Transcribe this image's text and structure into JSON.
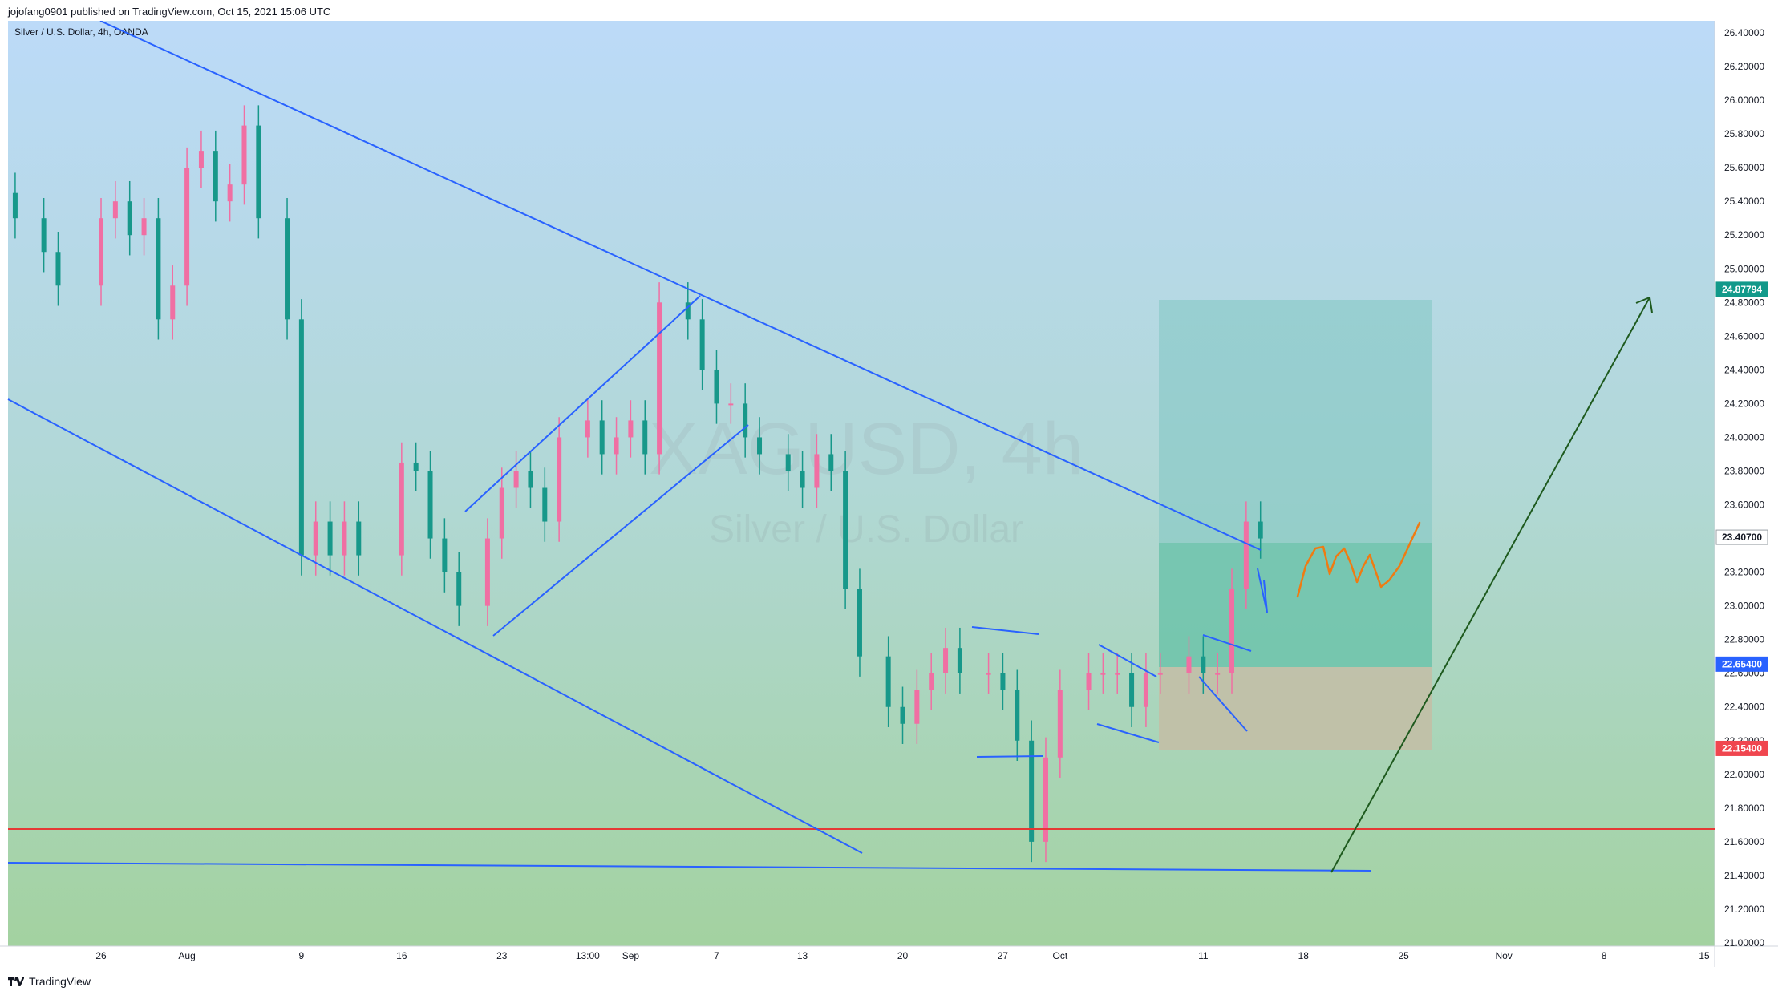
{
  "header": {
    "publish_line": "jojofang0901 published on TradingView.com, Oct 15, 2021 15:06 UTC"
  },
  "symbol": {
    "legend": "Silver / U.S. Dollar, 4h, OANDA",
    "watermark_ticker": "XAGUSD, 4h",
    "watermark_name": "Silver / U.S. Dollar"
  },
  "footer": {
    "brand": "TradingView"
  },
  "colors": {
    "background_top": "#bcdaf8",
    "background_bottom": "#a3d2a0",
    "up_candle": "#f06fa3",
    "down_candle": "#17988a",
    "trendline": "#2962ff",
    "support_line": "#e53935",
    "target_box": "#7fc7c2",
    "profit_box": "#60bfa5",
    "stop_box": "#c6bba4",
    "projection": "#ef7b12",
    "arrow": "#1e5a1e",
    "tag_target": "#12998a",
    "tag_entry": "#2962ff",
    "tag_stop": "#f0464f"
  },
  "chart_data": {
    "type": "candlestick",
    "title": "Silver / U.S. Dollar, 4h, OANDA",
    "ylim": [
      21.0,
      26.4
    ],
    "y_ticks": [
      "26.40000",
      "26.20000",
      "26.00000",
      "25.80000",
      "25.60000",
      "25.40000",
      "25.20000",
      "25.00000",
      "24.80000",
      "24.60000",
      "24.40000",
      "24.20000",
      "24.00000",
      "23.80000",
      "23.60000",
      "23.40000",
      "23.20000",
      "23.00000",
      "22.80000",
      "22.60000",
      "22.40000",
      "22.20000",
      "22.00000",
      "21.80000",
      "21.60000",
      "21.40000",
      "21.20000",
      "21.00000"
    ],
    "x_ticks": [
      "26",
      "Aug",
      "9",
      "16",
      "23",
      "13:00",
      "Sep",
      "7",
      "13",
      "20",
      "27",
      "Oct",
      "11",
      "18",
      "25",
      "Nov",
      "8",
      "15"
    ],
    "price_tags": [
      {
        "label": "24.87794",
        "value": 24.878,
        "role": "target"
      },
      {
        "label": "23.40700",
        "value": 23.407,
        "role": "last"
      },
      {
        "label": "22.65400",
        "value": 22.654,
        "role": "entry"
      },
      {
        "label": "22.15400",
        "value": 22.154,
        "role": "stop"
      }
    ],
    "support_level": 21.69,
    "trade_box": {
      "top": 24.878,
      "entry": 22.654,
      "bottom": 22.154,
      "mid": 23.407,
      "start_date": "2021-10-07",
      "end_date": "2021-10-27"
    },
    "series": [
      {
        "name": "close",
        "points": [
          {
            "date": "2021-07-20",
            "close": 25.3
          },
          {
            "date": "2021-07-22",
            "close": 25.1
          },
          {
            "date": "2021-07-23",
            "close": 24.9
          },
          {
            "date": "2021-07-26",
            "close": 25.3
          },
          {
            "date": "2021-07-27",
            "close": 25.4
          },
          {
            "date": "2021-07-28",
            "close": 25.2
          },
          {
            "date": "2021-07-29",
            "close": 25.3
          },
          {
            "date": "2021-07-30",
            "close": 24.7
          },
          {
            "date": "2021-07-31",
            "close": 24.9
          },
          {
            "date": "2021-08-01",
            "close": 25.6
          },
          {
            "date": "2021-08-02",
            "close": 25.7
          },
          {
            "date": "2021-08-03",
            "close": 25.4
          },
          {
            "date": "2021-08-04",
            "close": 25.5
          },
          {
            "date": "2021-08-05",
            "close": 25.85
          },
          {
            "date": "2021-08-06",
            "close": 25.3
          },
          {
            "date": "2021-08-08",
            "close": 24.7
          },
          {
            "date": "2021-08-09",
            "close": 23.3
          },
          {
            "date": "2021-08-10",
            "close": 23.5
          },
          {
            "date": "2021-08-11",
            "close": 23.3
          },
          {
            "date": "2021-08-12",
            "close": 23.5
          },
          {
            "date": "2021-08-13",
            "close": 23.3
          },
          {
            "date": "2021-08-16",
            "close": 23.85
          },
          {
            "date": "2021-08-17",
            "close": 23.8
          },
          {
            "date": "2021-08-18",
            "close": 23.4
          },
          {
            "date": "2021-08-19",
            "close": 23.2
          },
          {
            "date": "2021-08-20",
            "close": 23.0
          },
          {
            "date": "2021-08-22",
            "close": 23.4
          },
          {
            "date": "2021-08-23",
            "close": 23.7
          },
          {
            "date": "2021-08-24",
            "close": 23.8
          },
          {
            "date": "2021-08-25",
            "close": 23.7
          },
          {
            "date": "2021-08-26",
            "close": 23.5
          },
          {
            "date": "2021-08-27",
            "close": 24.0
          },
          {
            "date": "2021-08-29",
            "close": 24.1
          },
          {
            "date": "2021-08-30",
            "close": 23.9
          },
          {
            "date": "2021-08-31",
            "close": 24.0
          },
          {
            "date": "2021-09-01",
            "close": 24.1
          },
          {
            "date": "2021-09-02",
            "close": 23.9
          },
          {
            "date": "2021-09-03",
            "close": 24.8
          },
          {
            "date": "2021-09-05",
            "close": 24.7
          },
          {
            "date": "2021-09-06",
            "close": 24.4
          },
          {
            "date": "2021-09-07",
            "close": 24.2
          },
          {
            "date": "2021-09-08",
            "close": 24.2
          },
          {
            "date": "2021-09-09",
            "close": 24.0
          },
          {
            "date": "2021-09-10",
            "close": 23.9
          },
          {
            "date": "2021-09-12",
            "close": 23.8
          },
          {
            "date": "2021-09-13",
            "close": 23.7
          },
          {
            "date": "2021-09-14",
            "close": 23.9
          },
          {
            "date": "2021-09-15",
            "close": 23.8
          },
          {
            "date": "2021-09-16",
            "close": 23.1
          },
          {
            "date": "2021-09-17",
            "close": 22.7
          },
          {
            "date": "2021-09-19",
            "close": 22.4
          },
          {
            "date": "2021-09-20",
            "close": 22.3
          },
          {
            "date": "2021-09-21",
            "close": 22.5
          },
          {
            "date": "2021-09-22",
            "close": 22.6
          },
          {
            "date": "2021-09-23",
            "close": 22.75
          },
          {
            "date": "2021-09-24",
            "close": 22.6
          },
          {
            "date": "2021-09-26",
            "close": 22.6
          },
          {
            "date": "2021-09-27",
            "close": 22.5
          },
          {
            "date": "2021-09-28",
            "close": 22.2
          },
          {
            "date": "2021-09-29",
            "close": 21.6
          },
          {
            "date": "2021-09-30",
            "close": 22.1
          },
          {
            "date": "2021-10-01",
            "close": 22.5
          },
          {
            "date": "2021-10-03",
            "close": 22.6
          },
          {
            "date": "2021-10-04",
            "close": 22.6
          },
          {
            "date": "2021-10-05",
            "close": 22.6
          },
          {
            "date": "2021-10-06",
            "close": 22.4
          },
          {
            "date": "2021-10-07",
            "close": 22.6
          },
          {
            "date": "2021-10-08",
            "close": 22.6
          },
          {
            "date": "2021-10-10",
            "close": 22.7
          },
          {
            "date": "2021-10-11",
            "close": 22.6
          },
          {
            "date": "2021-10-12",
            "close": 22.6
          },
          {
            "date": "2021-10-13",
            "close": 23.1
          },
          {
            "date": "2021-10-14",
            "close": 23.5
          },
          {
            "date": "2021-10-15",
            "close": 23.4
          }
        ]
      }
    ]
  }
}
